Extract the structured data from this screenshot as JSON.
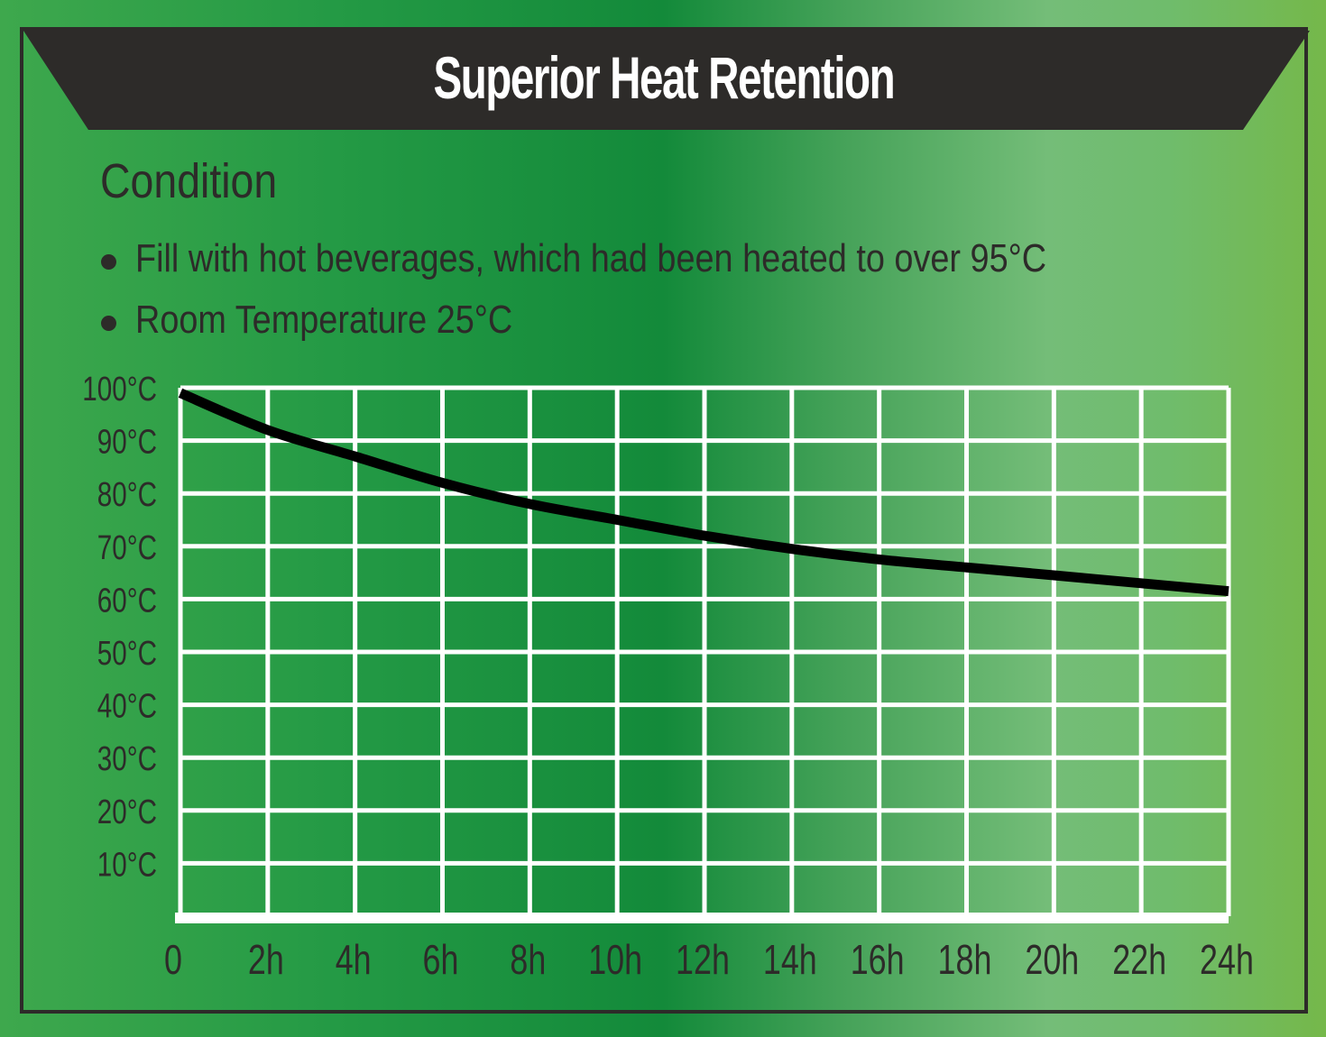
{
  "title": "Superior Heat Retention",
  "condition": {
    "heading": "Condition",
    "items": [
      "Fill with hot beverages, which had been heated to over 95°C",
      "Room Temperature 25°C"
    ]
  },
  "colors": {
    "banner": "#2d2b29",
    "curve": "#000000",
    "grid": "#ffffff",
    "text": "#2d2b29"
  },
  "chart_data": {
    "type": "line",
    "title": "",
    "xlabel": "",
    "ylabel": "",
    "grid": true,
    "xlim": [
      0,
      24
    ],
    "ylim": [
      0,
      100
    ],
    "x_tick_values": [
      0,
      2,
      4,
      6,
      8,
      10,
      12,
      14,
      16,
      18,
      20,
      22,
      24
    ],
    "x_tick_labels": [
      "0",
      "2h",
      "4h",
      "6h",
      "8h",
      "10h",
      "12h",
      "14h",
      "16h",
      "18h",
      "20h",
      "22h",
      "24h"
    ],
    "y_tick_values": [
      100,
      90,
      80,
      70,
      60,
      50,
      40,
      30,
      20,
      10
    ],
    "y_tick_labels": [
      "100°C",
      "90°C",
      "80°C",
      "70°C",
      "60°C",
      "50°C",
      "40°C",
      "30°C",
      "20°C",
      "10°C"
    ],
    "series": [
      {
        "x": [
          0,
          2,
          4,
          6,
          8,
          10,
          12,
          14,
          16,
          18,
          20,
          22,
          24
        ],
        "y": [
          99,
          92,
          87,
          82,
          78,
          75,
          72,
          69.5,
          67.5,
          66,
          64.5,
          63,
          61.5
        ]
      }
    ]
  }
}
